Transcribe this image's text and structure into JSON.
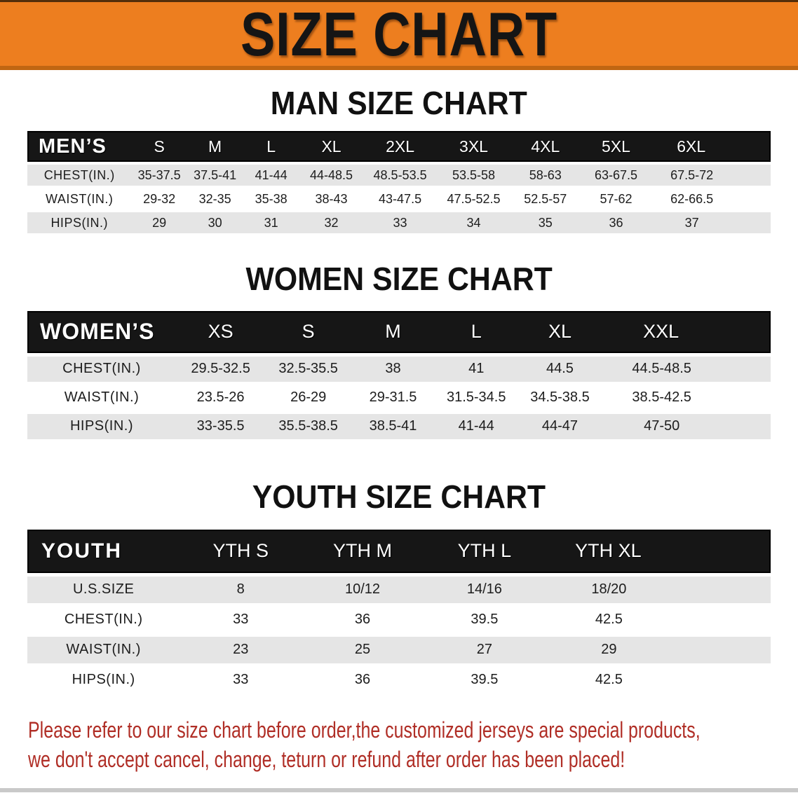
{
  "banner": {
    "title": "SIZE CHART"
  },
  "colors": {
    "banner_orange": "#ED7E1F",
    "banner_shadow": "#C06612",
    "header_black": "#161616",
    "row_gray": "#E5E5E5",
    "disclaimer_red": "#B02E26"
  },
  "sections": [
    {
      "heading": "MAN SIZE CHART",
      "table": {
        "label": "MEN’S",
        "columns": [
          "S",
          "M",
          "L",
          "XL",
          "2XL",
          "3XL",
          "4XL",
          "5XL",
          "6XL"
        ],
        "rows": [
          {
            "label": "CHEST(IN.)",
            "values": [
              "35-37.5",
              "37.5-41",
              "41-44",
              "44-48.5",
              "48.5-53.5",
              "53.5-58",
              "58-63",
              "63-67.5",
              "67.5-72"
            ]
          },
          {
            "label": "WAIST(IN.)",
            "values": [
              "29-32",
              "32-35",
              "35-38",
              "38-43",
              "43-47.5",
              "47.5-52.5",
              "52.5-57",
              "57-62",
              "62-66.5"
            ]
          },
          {
            "label": "HIPS(IN.)",
            "values": [
              "29",
              "30",
              "31",
              "32",
              "33",
              "34",
              "35",
              "36",
              "37"
            ]
          }
        ]
      }
    },
    {
      "heading": "WOMEN SIZE CHART",
      "table": {
        "label": "WOMEN’S",
        "columns": [
          "XS",
          "S",
          "M",
          "L",
          "XL",
          "XXL"
        ],
        "rows": [
          {
            "label": "CHEST(IN.)",
            "values": [
              "29.5-32.5",
              "32.5-35.5",
              "38",
              "41",
              "44.5",
              "44.5-48.5"
            ]
          },
          {
            "label": "WAIST(IN.)",
            "values": [
              "23.5-26",
              "26-29",
              "29-31.5",
              "31.5-34.5",
              "34.5-38.5",
              "38.5-42.5"
            ]
          },
          {
            "label": "HIPS(IN.)",
            "values": [
              "33-35.5",
              "35.5-38.5",
              "38.5-41",
              "41-44",
              "44-47",
              "47-50"
            ]
          }
        ]
      }
    },
    {
      "heading": "YOUTH SIZE CHART",
      "table": {
        "label": "YOUTH",
        "columns": [
          "YTH S",
          "YTH M",
          "YTH L",
          "YTH XL"
        ],
        "rows": [
          {
            "label": "U.S.SIZE",
            "values": [
              "8",
              "10/12",
              "14/16",
              "18/20"
            ]
          },
          {
            "label": "CHEST(IN.)",
            "values": [
              "33",
              "36",
              "39.5",
              "42.5"
            ]
          },
          {
            "label": "WAIST(IN.)",
            "values": [
              "23",
              "25",
              "27",
              "29"
            ]
          },
          {
            "label": "HIPS(IN.)",
            "values": [
              "33",
              "36",
              "39.5",
              "42.5"
            ]
          }
        ]
      }
    }
  ],
  "disclaimer": {
    "line1": "Please refer to our size chart before order,the customized jerseys are special products,",
    "line2": "we don't accept cancel, change, teturn or refund after order has been placed!"
  }
}
